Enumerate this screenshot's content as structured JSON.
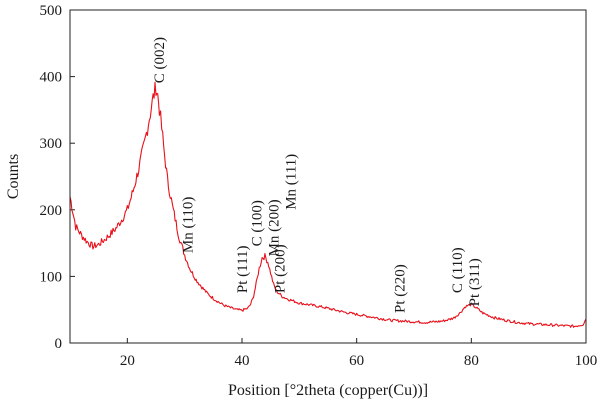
{
  "chart_data": {
    "type": "line",
    "title": "",
    "xlabel": "Position [°2theta (copper(Cu))]",
    "ylabel": "Counts",
    "xlim": [
      10,
      100
    ],
    "ylim": [
      0,
      500
    ],
    "x_ticks": [
      20,
      40,
      60,
      80,
      100
    ],
    "y_ticks": [
      0,
      100,
      200,
      300,
      400,
      500
    ],
    "grid": false,
    "legend": "none",
    "line_color": "#e8101a",
    "series": [
      {
        "x": [
          10,
          11,
          12,
          13,
          14,
          15,
          16,
          17,
          18,
          19,
          20,
          21,
          22,
          23,
          24,
          24.5,
          25,
          25.3,
          25.6,
          26,
          26.5,
          27,
          28,
          29,
          30,
          31,
          32,
          33,
          34,
          35,
          36,
          37,
          38,
          39,
          40,
          41,
          41.5,
          42,
          42.5,
          43,
          43.5,
          44,
          44.5,
          45,
          45.5,
          46,
          47,
          48,
          49,
          50,
          52,
          54,
          56,
          58,
          60,
          62,
          64,
          66,
          68,
          70,
          72,
          74,
          75,
          76,
          77,
          78,
          79,
          80,
          81,
          82,
          84,
          86,
          88,
          90,
          92,
          94,
          96,
          98,
          99.5,
          100
        ],
        "y": [
          220,
          175,
          162,
          152,
          145,
          148,
          155,
          163,
          172,
          185,
          200,
          228,
          262,
          300,
          345,
          368,
          385,
          372,
          352,
          322,
          282,
          245,
          200,
          160,
          132,
          110,
          95,
          84,
          74,
          67,
          61,
          56,
          53,
          50,
          49,
          52,
          58,
          70,
          90,
          112,
          128,
          130,
          122,
          105,
          88,
          78,
          70,
          66,
          63,
          60,
          57,
          54,
          50,
          46,
          43,
          40,
          37,
          34,
          33,
          32,
          31,
          32,
          33,
          35,
          38,
          45,
          55,
          58,
          52,
          45,
          38,
          34,
          31,
          29,
          28,
          27,
          26,
          25,
          28,
          36
        ]
      }
    ],
    "annotations": [
      {
        "label": "C (002)",
        "x": 25.5,
        "y": 390
      },
      {
        "label": "Mn (110)",
        "x": 30.5,
        "y": 135
      },
      {
        "label": "Pt (111)",
        "x": 40,
        "y": 75
      },
      {
        "label": "C (100)",
        "x": 42.5,
        "y": 145
      },
      {
        "label": "Mn (200)",
        "x": 45.5,
        "y": 130
      },
      {
        "label": "Pt (200)",
        "x": 46.5,
        "y": 75
      },
      {
        "label": "Mn (111)",
        "x": 48.5,
        "y": 200
      },
      {
        "label": "Pt (220)",
        "x": 67.5,
        "y": 45
      },
      {
        "label": "C (110)",
        "x": 77.5,
        "y": 75
      },
      {
        "label": "Pt (311)",
        "x": 80.5,
        "y": 55
      }
    ]
  }
}
